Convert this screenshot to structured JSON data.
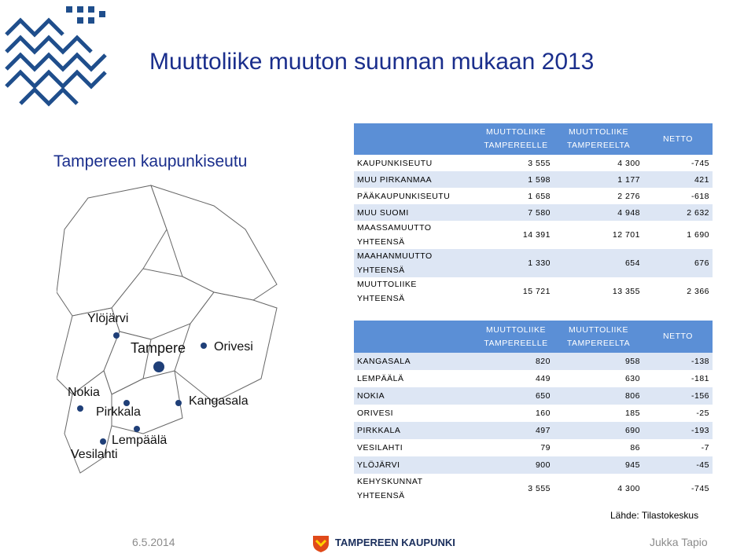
{
  "page": {
    "title": "Muuttoliike muuton suunnan mukaan 2013",
    "region_title": "Tampereen kaupunkiseutu",
    "source": "Lähde: Tilastokeskus"
  },
  "map": {
    "labels": {
      "ylojarvi": "Ylöjärvi",
      "tampere": "Tampere",
      "orivesi": "Orivesi",
      "nokia": "Nokia",
      "pirkkala": "Pirkkala",
      "kangasala": "Kangasala",
      "lempaala": "Lempäälä",
      "vesilahti": "Vesilahti"
    }
  },
  "table1": {
    "headers": {
      "to_line1": "MUUTTOLIIKE",
      "to_line2": "TAMPEREELLE",
      "from_line1": "MUUTTOLIIKE",
      "from_line2": "TAMPEREELTA",
      "net": "NETTO"
    },
    "rows": [
      {
        "name": "KAUPUNKISEUTU",
        "to": "3 555",
        "from": "4 300",
        "net": "-745"
      },
      {
        "name": "MUU PIRKANMAA",
        "to": "1 598",
        "from": "1 177",
        "net": "421"
      },
      {
        "name": "PÄÄKAUPUNKISEUTU",
        "to": "1 658",
        "from": "2 276",
        "net": "-618"
      },
      {
        "name": "MUU SUOMI",
        "to": "7 580",
        "from": "4 948",
        "net": "2 632"
      },
      {
        "name1": "MAASSAMUUTTO",
        "name2": "YHTEENSÄ",
        "to": "14 391",
        "from": "12 701",
        "net": "1 690"
      },
      {
        "name1": "MAAHANMUUTTO",
        "name2": "YHTEENSÄ",
        "to": "1 330",
        "from": "654",
        "net": "676"
      },
      {
        "name1": "MUUTTOLIIKE",
        "name2": "YHTEENSÄ",
        "to": "15 721",
        "from": "13 355",
        "net": "2 366"
      }
    ]
  },
  "table2": {
    "headers": {
      "to_line1": "MUUTTOLIIKE",
      "to_line2": "TAMPEREELLE",
      "from_line1": "MUUTTOLIIKE",
      "from_line2": "TAMPEREELTA",
      "net": "NETTO"
    },
    "rows": [
      {
        "name": "KANGASALA",
        "to": "820",
        "from": "958",
        "net": "-138"
      },
      {
        "name": "LEMPÄÄLÄ",
        "to": "449",
        "from": "630",
        "net": "-181"
      },
      {
        "name": "NOKIA",
        "to": "650",
        "from": "806",
        "net": "-156"
      },
      {
        "name": "ORIVESI",
        "to": "160",
        "from": "185",
        "net": "-25"
      },
      {
        "name": "PIRKKALA",
        "to": "497",
        "from": "690",
        "net": "-193"
      },
      {
        "name": "VESILAHTI",
        "to": "79",
        "from": "86",
        "net": "-7"
      },
      {
        "name": "YLÖJÄRVI",
        "to": "900",
        "from": "945",
        "net": "-45"
      },
      {
        "name1": "KEHYSKUNNAT",
        "name2": "YHTEENSÄ",
        "to": "3 555",
        "from": "4 300",
        "net": "-745"
      }
    ]
  },
  "footer": {
    "date": "6.5.2014",
    "org_name": "TAMPEREEN KAUPUNKI",
    "author": "Jukka Tapio"
  },
  "colors": {
    "title": "#1a2e8c",
    "header_bg": "#5b8fd6",
    "row_light": "#dde6f4",
    "logo_blue": "#1f4e8c",
    "map_dot": "#1f3f78"
  },
  "icons": {
    "logo": "tampere-wave-logo-icon",
    "footer_logo": "tampere-crest-icon"
  }
}
